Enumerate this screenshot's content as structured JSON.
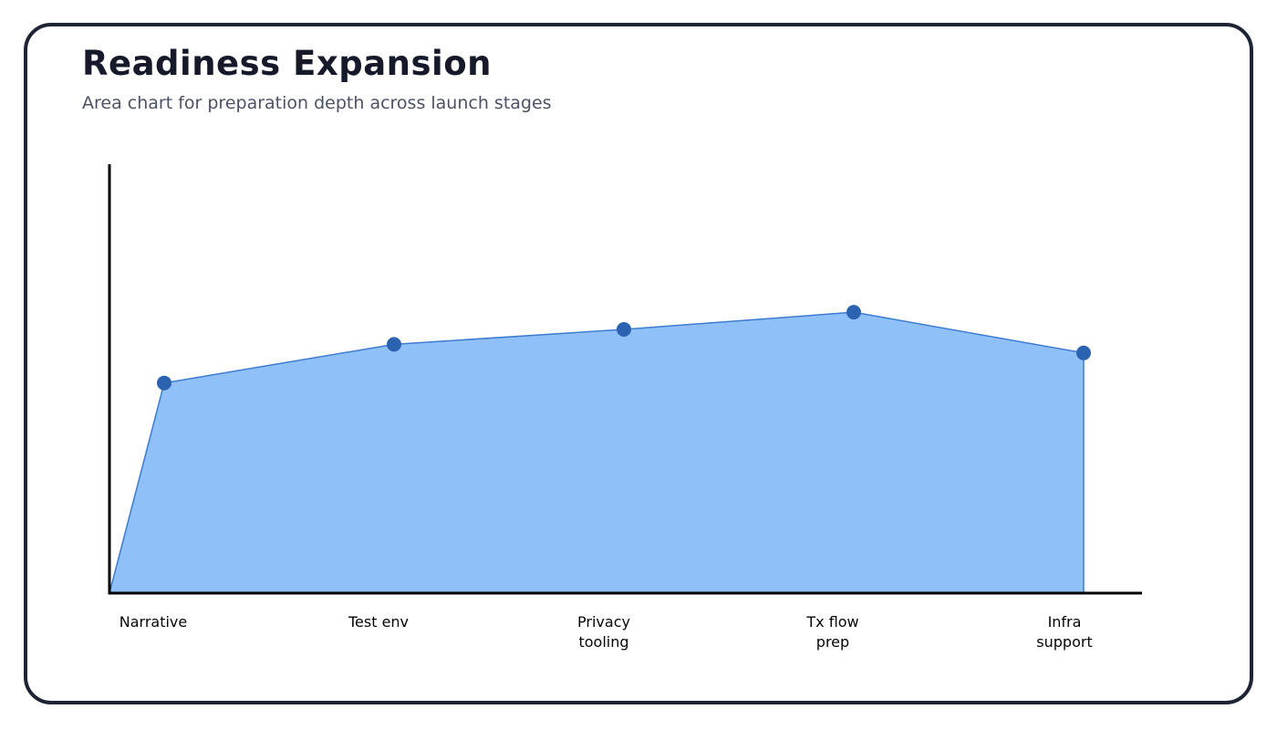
{
  "header": {
    "title": "Readiness Expansion",
    "subtitle": "Area chart for preparation depth across launch stages"
  },
  "chart_data": {
    "type": "area",
    "title": "Readiness Expansion",
    "subtitle": "Area chart for preparation depth across launch stages",
    "categories": [
      "Narrative",
      "Test env",
      "Privacy\ntooling",
      "Tx flow\nprep",
      "Infra\nsupport"
    ],
    "values": [
      49,
      58,
      61.5,
      65.5,
      56
    ],
    "xlabel": "",
    "ylabel": "",
    "ylim": [
      0,
      100
    ],
    "grid": false,
    "legend": null,
    "y_tick_labels_shown": false,
    "area_starts_at_origin": true,
    "colors": {
      "area_fill": "#8fc1f8",
      "area_stroke": "#3d7bd0",
      "point": "#2b63b1",
      "axis": "#000000",
      "title_text": "#15192a",
      "subtitle_text": "#4b5266",
      "card_border": "#1d2433"
    }
  }
}
